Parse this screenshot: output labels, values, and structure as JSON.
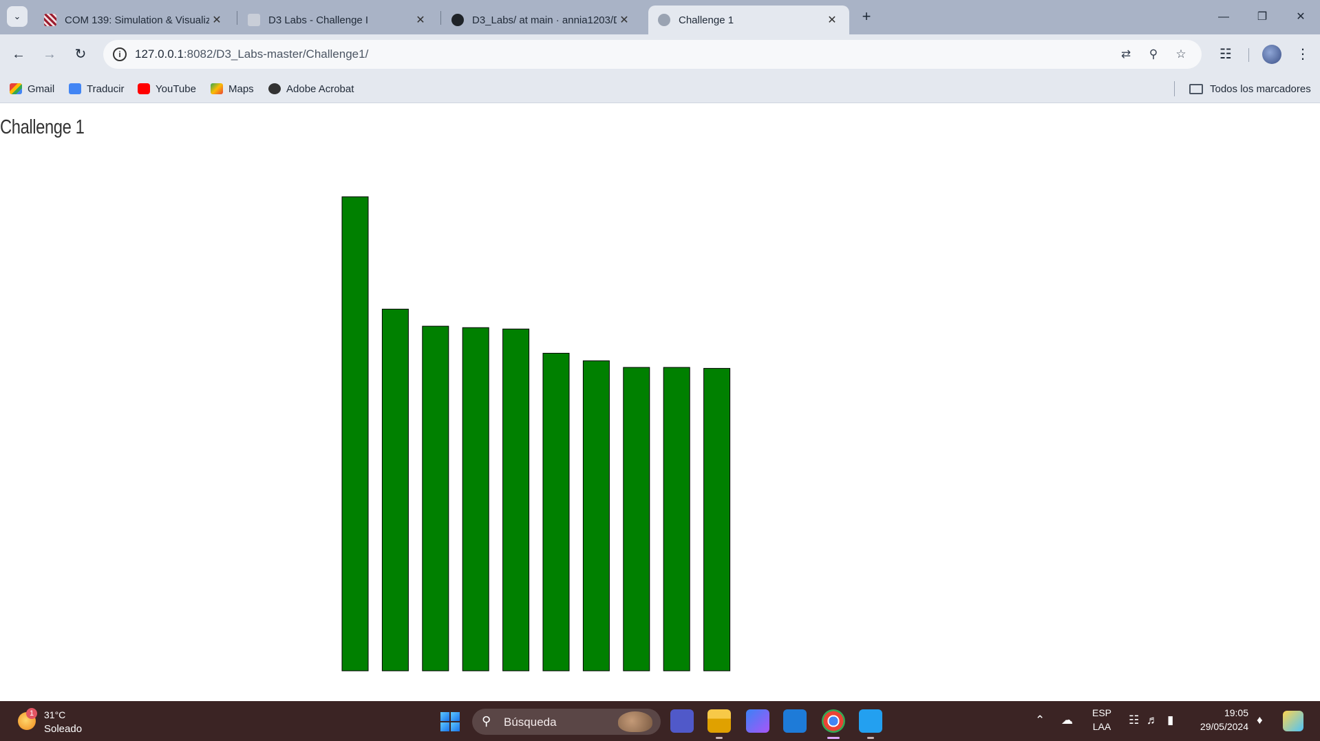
{
  "browser": {
    "tabs": [
      {
        "title": "COM 139: Simulation & Visualiz",
        "active": false
      },
      {
        "title": "D3 Labs - Challenge I",
        "active": false
      },
      {
        "title": "D3_Labs/ at main · annia1203/D",
        "active": false
      },
      {
        "title": "Challenge 1",
        "active": true
      }
    ],
    "new_tab_label": "+",
    "url_host": "127.0.0.1",
    "url_path": ":8082/D3_Labs-master/Challenge1/",
    "bookmarks": [
      "Gmail",
      "Traducir",
      "YouTube",
      "Maps",
      "Adobe Acrobat"
    ],
    "all_bookmarks_label": "Todos los marcadores"
  },
  "page": {
    "title": "Challenge 1"
  },
  "chart_data": {
    "type": "bar",
    "title": "",
    "xlabel": "",
    "ylabel": "",
    "values": [
      1000,
      763,
      727,
      724,
      721,
      670,
      654,
      640,
      640,
      638
    ],
    "ylim": [
      0,
      1000
    ],
    "color": "#008000",
    "stroke": "#000000",
    "grid": false
  },
  "taskbar": {
    "weather_temp": "31°C",
    "weather_desc": "Soleado",
    "weather_badge": "1",
    "search_label": "Búsqueda",
    "language_top": "ESP",
    "language_bottom": "LAA",
    "time": "19:05",
    "date": "29/05/2024"
  },
  "colors": {
    "tabstrip": "#a9b3c6",
    "toolbar": "#e4e8ef",
    "taskbar": "#3b2424",
    "bar": "#008000"
  }
}
